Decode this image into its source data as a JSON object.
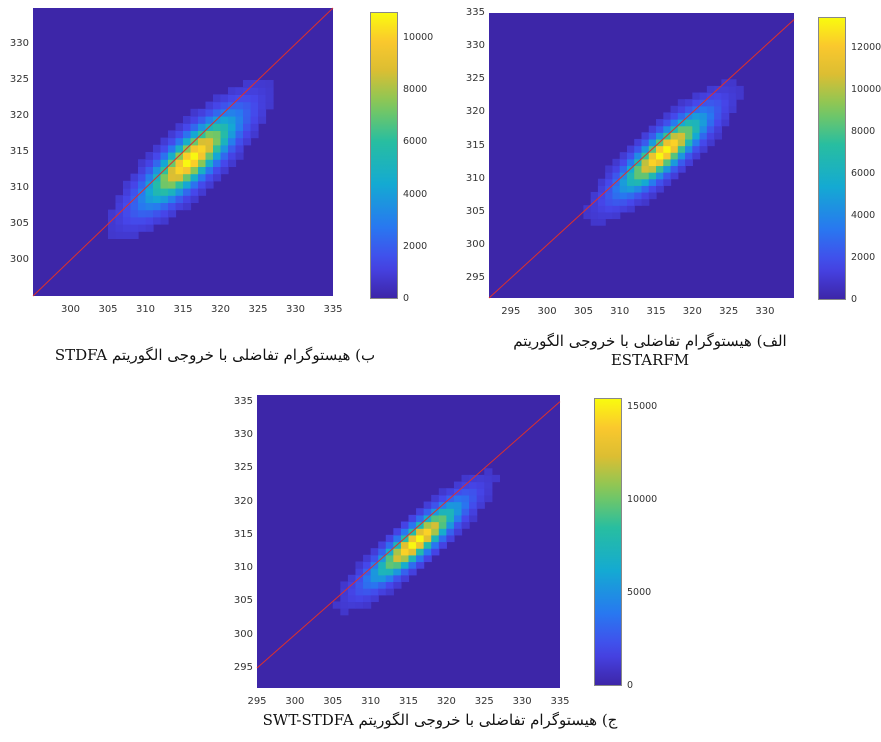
{
  "chart_data": [
    {
      "id": "b",
      "type": "heatmap",
      "caption": "ب) هیستوگرام تفاضلی با خروجی الگوریتم STDFA",
      "caption_line2": "",
      "xlim": [
        295,
        335
      ],
      "ylim": [
        295,
        335
      ],
      "xticks": [
        "300",
        "305",
        "310",
        "315",
        "320",
        "325",
        "330",
        "335"
      ],
      "yticks": [
        "300",
        "305",
        "310",
        "315",
        "320",
        "325",
        "330"
      ],
      "colorbar": {
        "max": 11000,
        "ticks": [
          "0",
          "2000",
          "4000",
          "6000",
          "8000",
          "10000"
        ],
        "tick_values": [
          0,
          2000,
          4000,
          6000,
          8000,
          10000
        ]
      },
      "identity_line_color": "#e0302a",
      "density": {
        "center": [
          316,
          314
        ],
        "peak": 11000,
        "spread_major": 5.2,
        "spread_minor": 1.6
      }
    },
    {
      "id": "alef",
      "type": "heatmap",
      "caption": "الف) هیستوگرام تفاضلی با خروجی الگوریتم",
      "caption_line2": "ESTARFM",
      "xlim": [
        292,
        334
      ],
      "ylim": [
        292,
        335
      ],
      "xticks": [
        "295",
        "300",
        "305",
        "310",
        "315",
        "320",
        "325",
        "330"
      ],
      "yticks": [
        "295",
        "300",
        "305",
        "310",
        "315",
        "320",
        "325",
        "330",
        "335"
      ],
      "colorbar": {
        "max": 13500,
        "ticks": [
          "0",
          "2000",
          "4000",
          "6000",
          "8000",
          "10000",
          "12000"
        ],
        "tick_values": [
          0,
          2000,
          4000,
          6000,
          8000,
          10000,
          12000
        ]
      },
      "identity_line_color": "#e0302a",
      "density": {
        "center": [
          316,
          314
        ],
        "peak": 13500,
        "spread_major": 5.0,
        "spread_minor": 1.4
      }
    },
    {
      "id": "jim",
      "type": "heatmap",
      "caption": "ج) هیستوگرام تفاضلی با خروجی الگوریتم SWT-STDFA",
      "caption_line2": "",
      "xlim": [
        295,
        335
      ],
      "ylim": [
        292,
        336
      ],
      "xticks": [
        "295",
        "300",
        "305",
        "310",
        "315",
        "320",
        "325",
        "330",
        "335"
      ],
      "yticks": [
        "295",
        "300",
        "305",
        "310",
        "315",
        "320",
        "325",
        "330",
        "335"
      ],
      "colorbar": {
        "max": 15500,
        "ticks": [
          "0",
          "5000",
          "10000",
          "15000"
        ],
        "tick_values": [
          0,
          5000,
          10000,
          15000
        ]
      },
      "identity_line_color": "#e0302a",
      "density": {
        "center": [
          316,
          314
        ],
        "peak": 15500,
        "spread_major": 5.0,
        "spread_minor": 1.2
      }
    }
  ]
}
